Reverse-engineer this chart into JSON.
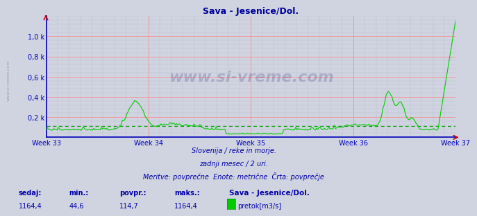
{
  "title": "Sava - Jesenice/Dol.",
  "title_color": "#000099",
  "bg_color": "#d0d4e0",
  "plot_bg_color": "#d0d4e0",
  "line_color": "#00cc00",
  "avg_line_color": "#009900",
  "axis_color": "#0000bb",
  "grid_color_major": "#ff8888",
  "grid_color_minor": "#bbbbcc",
  "week_labels": [
    "Week 33",
    "Week 34",
    "Week 35",
    "Week 36",
    "Week 37"
  ],
  "ytick_labels": [
    "0,2 k",
    "0,4 k",
    "0,6 k",
    "0,8 k",
    "1,0 k"
  ],
  "ytick_values": [
    200,
    400,
    600,
    800,
    1000
  ],
  "ylim": [
    0,
    1200
  ],
  "avg_value": 114.7,
  "max_value": 1164.4,
  "min_value": 44.6,
  "current_value": 1164.4,
  "footer_line1": "Slovenija / reke in morje.",
  "footer_line2": "zadnji mesec / 2 uri.",
  "footer_line3": "Meritve: povprečne  Enote: metrične  Črta: povprečje",
  "label_sedaj": "sedaj:",
  "label_min": "min.:",
  "label_povpr": "povpr.:",
  "label_maks": "maks.:",
  "label_station": "Sava - Jesenice/Dol.",
  "label_unit": "pretok[m3/s]",
  "watermark": "www.si-vreme.com",
  "n_points": 372
}
